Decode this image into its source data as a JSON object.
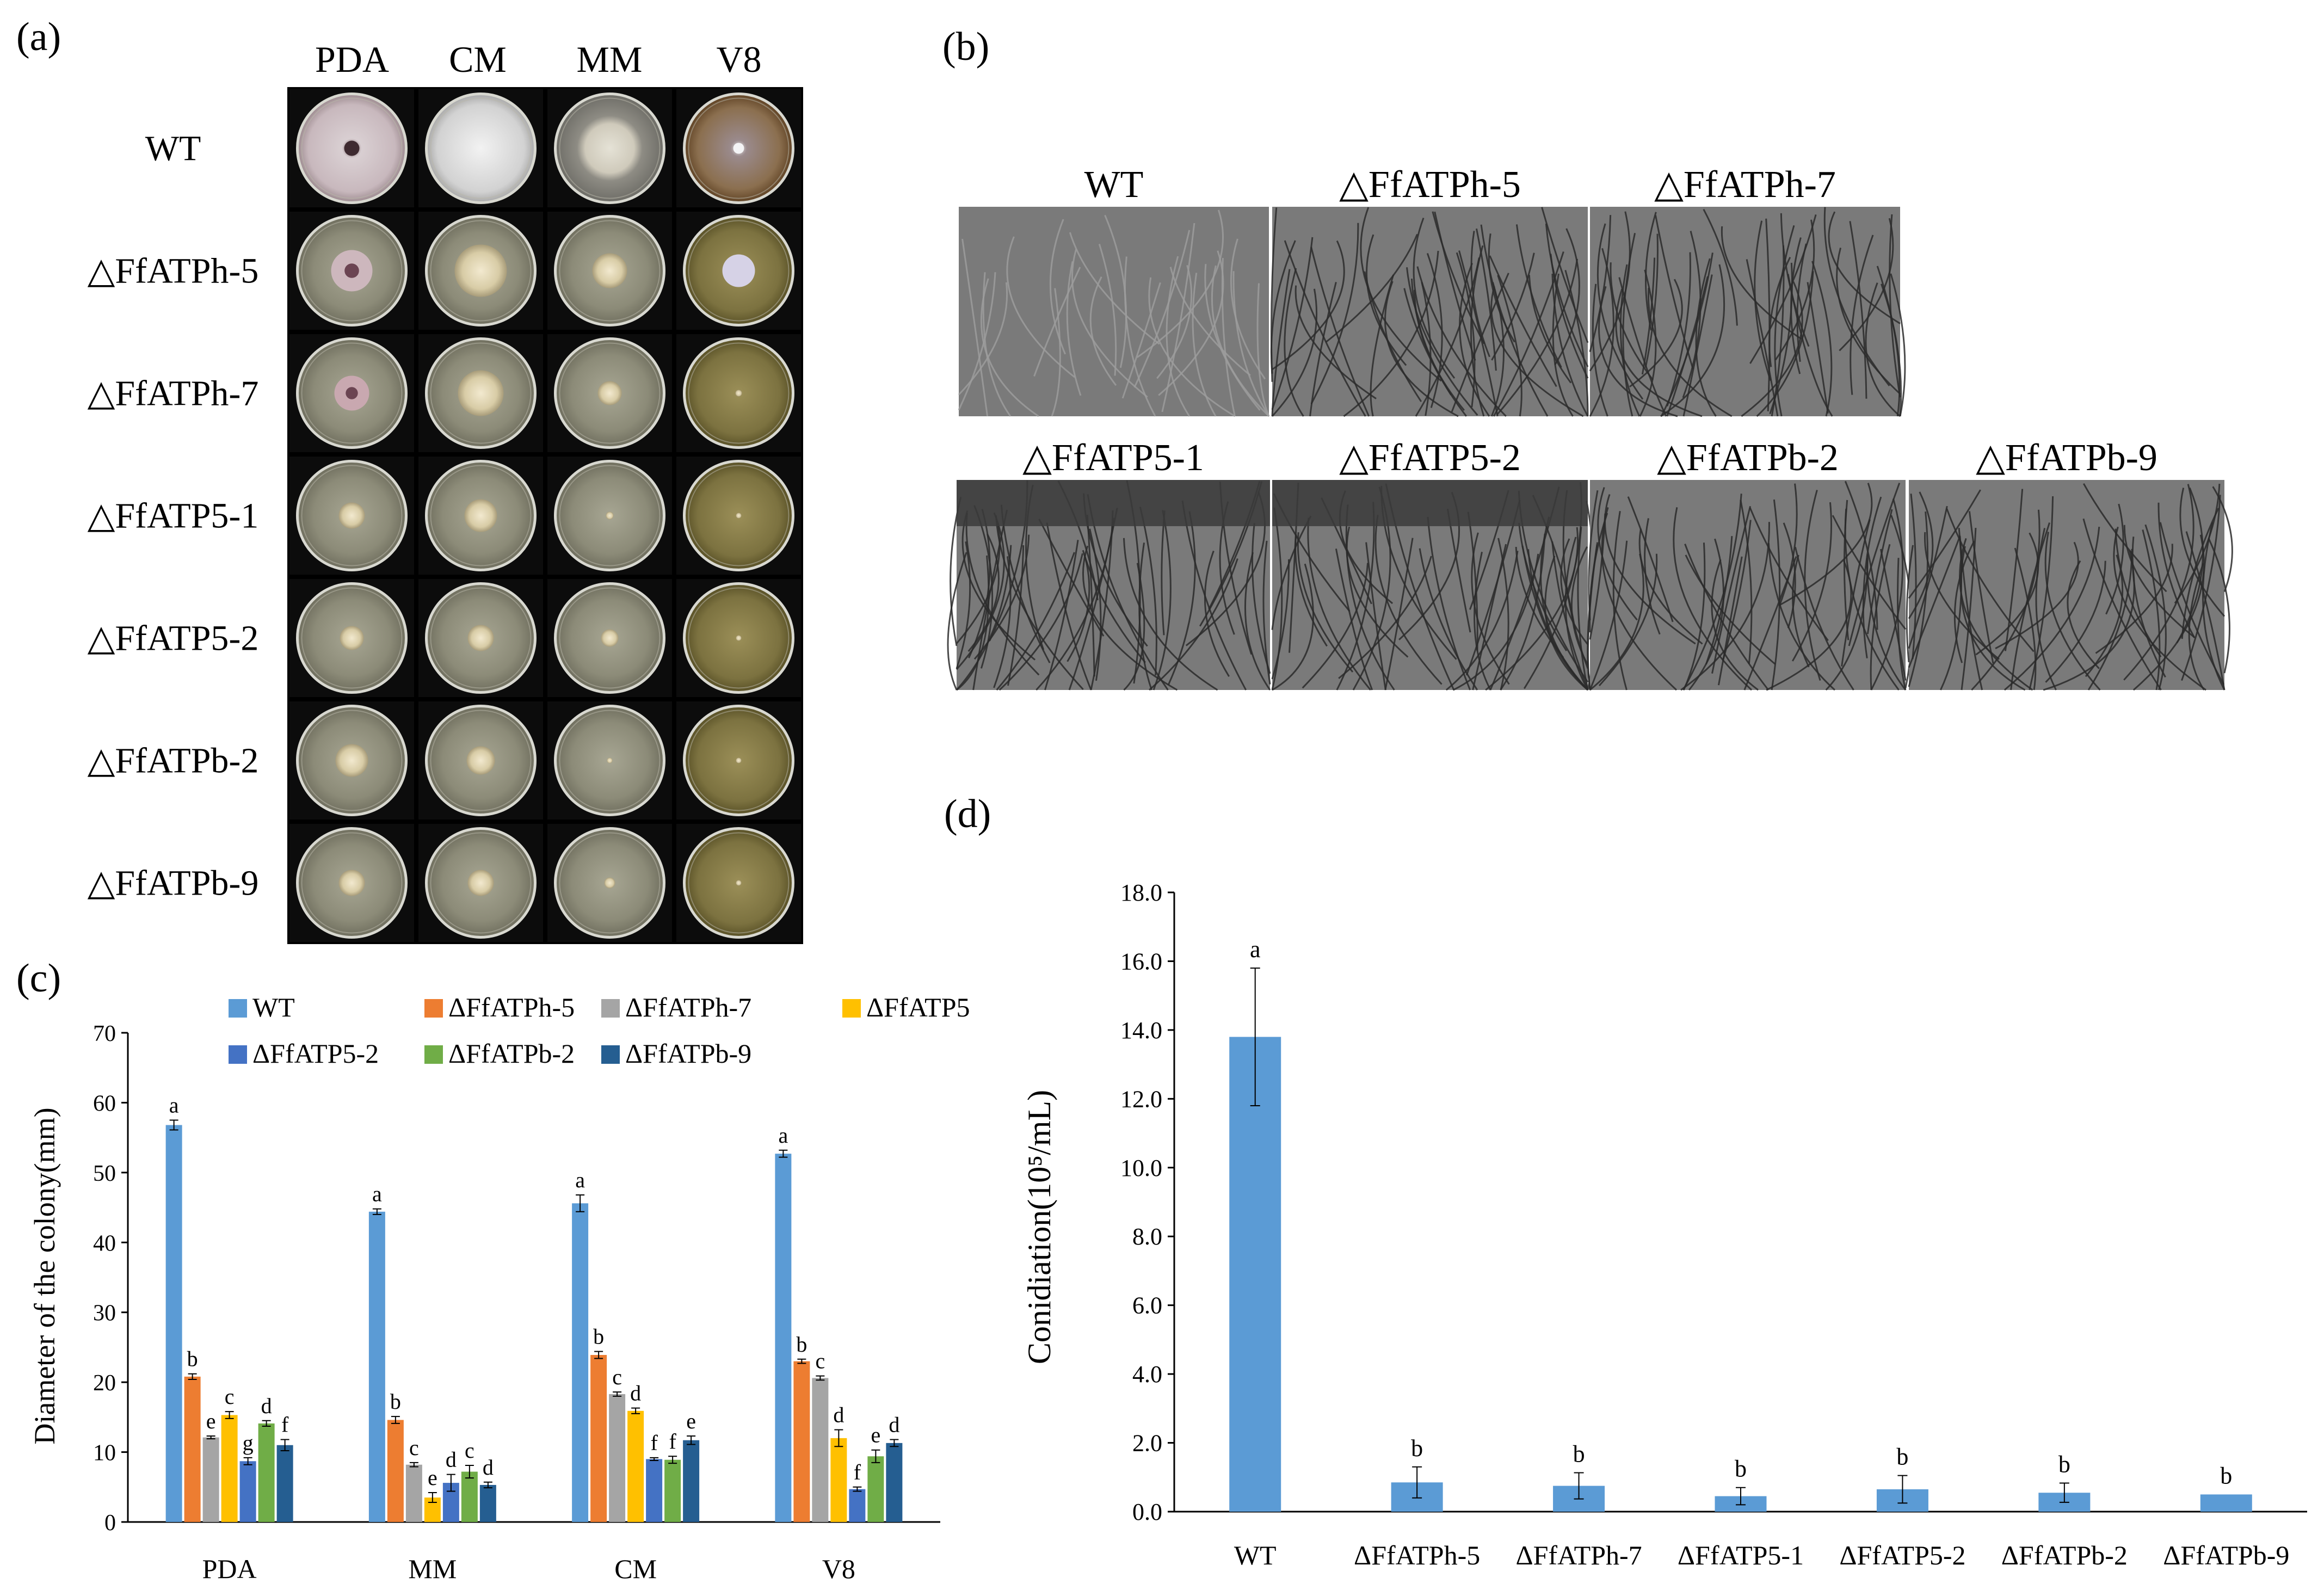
{
  "panel_labels": {
    "a": "(a)",
    "b": "(b)",
    "c": "(c)",
    "d": "(d)"
  },
  "colors": {
    "WT": "#5B9BD5",
    "ATPh5": "#ED7D31",
    "ATPh7": "#A5A5A5",
    "ATP5": "#FFC000",
    "ATP52": "#4472C4",
    "ATPb2": "#70AD47",
    "ATPb9": "#255E91",
    "dish_background": "#000000",
    "micrograph_background": "#7a7a7a"
  },
  "panel_a": {
    "columns": [
      "PDA",
      "CM",
      "MM",
      "V8"
    ],
    "rows": [
      "WT",
      "△FfATPh-5",
      "△FfATPh-7",
      "△FfATP5-1",
      "△FfATP5-2",
      "△FfATPb-2",
      "△FfATPb-9"
    ]
  },
  "panel_b": {
    "row1": [
      "WT",
      "△FfATPh-5",
      "△FfATPh-7"
    ],
    "row2": [
      "△FfATP5-1",
      "△FfATP5-2",
      "△FfATPb-2",
      "△FfATPb-9"
    ]
  },
  "chart_data": [
    {
      "type": "bar",
      "panel": "(c)",
      "ylabel": "Diameter of the colony(mm)",
      "xlabel": "",
      "ylim": [
        0,
        70
      ],
      "yticks": [
        "0",
        "10",
        "20",
        "30",
        "40",
        "50",
        "60",
        "70"
      ],
      "categories": [
        "PDA",
        "MM",
        "CM",
        "V8"
      ],
      "legend_position": "top",
      "legend_labels": [
        "WT",
        "ΔFfATPh-5",
        "ΔFfATPh-7",
        "ΔFfATP5",
        "ΔFfATP5-2",
        "ΔFfATPb-2",
        "ΔFfATPb-9"
      ],
      "series": [
        {
          "name": "WT",
          "color_key": "WT",
          "values": [
            56.8,
            44.4,
            45.6,
            52.7
          ],
          "errors": [
            0.7,
            0.4,
            1.2,
            0.5
          ],
          "letters": [
            "a",
            "a",
            "a",
            "a"
          ]
        },
        {
          "name": "ΔFfATPh-5",
          "color_key": "ATPh5",
          "values": [
            20.8,
            14.6,
            23.9,
            23.0
          ],
          "errors": [
            0.4,
            0.5,
            0.5,
            0.3
          ],
          "letters": [
            "b",
            "b",
            "b",
            "b"
          ]
        },
        {
          "name": "ΔFfATPh-7",
          "color_key": "ATPh7",
          "values": [
            12.1,
            8.2,
            18.3,
            20.6
          ],
          "errors": [
            0.2,
            0.3,
            0.3,
            0.3
          ],
          "letters": [
            "e",
            "c",
            "c",
            "c"
          ]
        },
        {
          "name": "ΔFfATP5",
          "color_key": "ATP5",
          "values": [
            15.3,
            3.5,
            15.9,
            12.0
          ],
          "errors": [
            0.5,
            0.7,
            0.4,
            1.2
          ],
          "letters": [
            "c",
            "e",
            "d",
            "d"
          ]
        },
        {
          "name": "ΔFfATP5-2",
          "color_key": "ATP52",
          "values": [
            8.7,
            5.6,
            9.0,
            4.7
          ],
          "errors": [
            0.5,
            1.2,
            0.2,
            0.3
          ],
          "letters": [
            "g",
            "d",
            "f",
            "f"
          ]
        },
        {
          "name": "ΔFfATPb-2",
          "color_key": "ATPb2",
          "values": [
            14.1,
            7.2,
            8.9,
            9.4
          ],
          "errors": [
            0.4,
            0.9,
            0.5,
            0.9
          ],
          "letters": [
            "d",
            "c",
            "f",
            "e"
          ]
        },
        {
          "name": "ΔFfATPb-9",
          "color_key": "ATPb9",
          "values": [
            11.0,
            5.3,
            11.7,
            11.3
          ],
          "errors": [
            0.8,
            0.4,
            0.6,
            0.5
          ],
          "letters": [
            "f",
            "d",
            "e",
            "d"
          ]
        }
      ]
    },
    {
      "type": "bar",
      "panel": "(d)",
      "ylabel": "Conidiation(10⁵/mL)",
      "xlabel": "",
      "ylim": [
        0,
        18
      ],
      "yticks": [
        "0.0",
        "2.0",
        "4.0",
        "6.0",
        "8.0",
        "10.0",
        "12.0",
        "14.0",
        "16.0",
        "18.0"
      ],
      "categories": [
        "WT",
        "ΔFfATPh-5",
        "ΔFfATPh-7",
        "ΔFfATP5-1",
        "ΔFfATP5-2",
        "ΔFfATPb-2",
        "ΔFfATPb-9"
      ],
      "color_key": "WT",
      "values": [
        13.8,
        0.85,
        0.75,
        0.45,
        0.65,
        0.55,
        0.5
      ],
      "errors": [
        2.0,
        0.45,
        0.38,
        0.25,
        0.4,
        0.28,
        0.0
      ],
      "letters": [
        "a",
        "b",
        "b",
        "b",
        "b",
        "b",
        "b"
      ]
    }
  ]
}
